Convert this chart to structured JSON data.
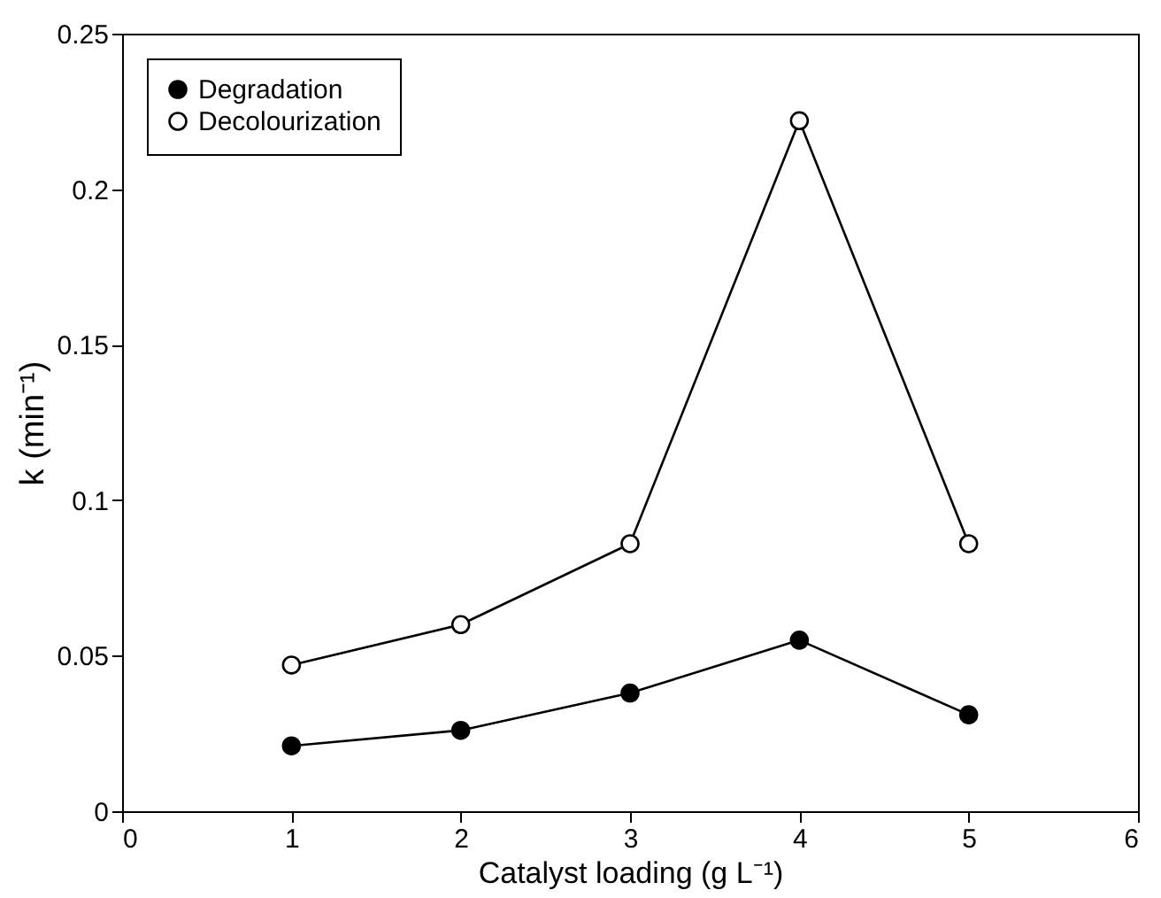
{
  "chart_data": {
    "type": "line",
    "xlabel": "Catalyst loading (g L⁻¹)",
    "ylabel": "k (min⁻¹)",
    "x": [
      1,
      2,
      3,
      4,
      5
    ],
    "series": [
      {
        "name": "Degradation",
        "color": "#000000",
        "values": [
          0.021,
          0.026,
          0.038,
          0.055,
          0.031
        ]
      },
      {
        "name": "Decolourization",
        "color": "#000000",
        "values": [
          0.047,
          0.06,
          0.086,
          0.222,
          0.086
        ]
      }
    ],
    "xlim": [
      0,
      6
    ],
    "xticks": [
      0,
      1,
      2,
      3,
      4,
      5,
      6
    ],
    "ylim": [
      0,
      0.25
    ],
    "yticks": [
      0,
      0.05,
      0.1,
      0.15,
      0.2,
      0.25
    ],
    "marker": "circle",
    "line_style": "solid",
    "grid": false,
    "legend": "top left"
  }
}
